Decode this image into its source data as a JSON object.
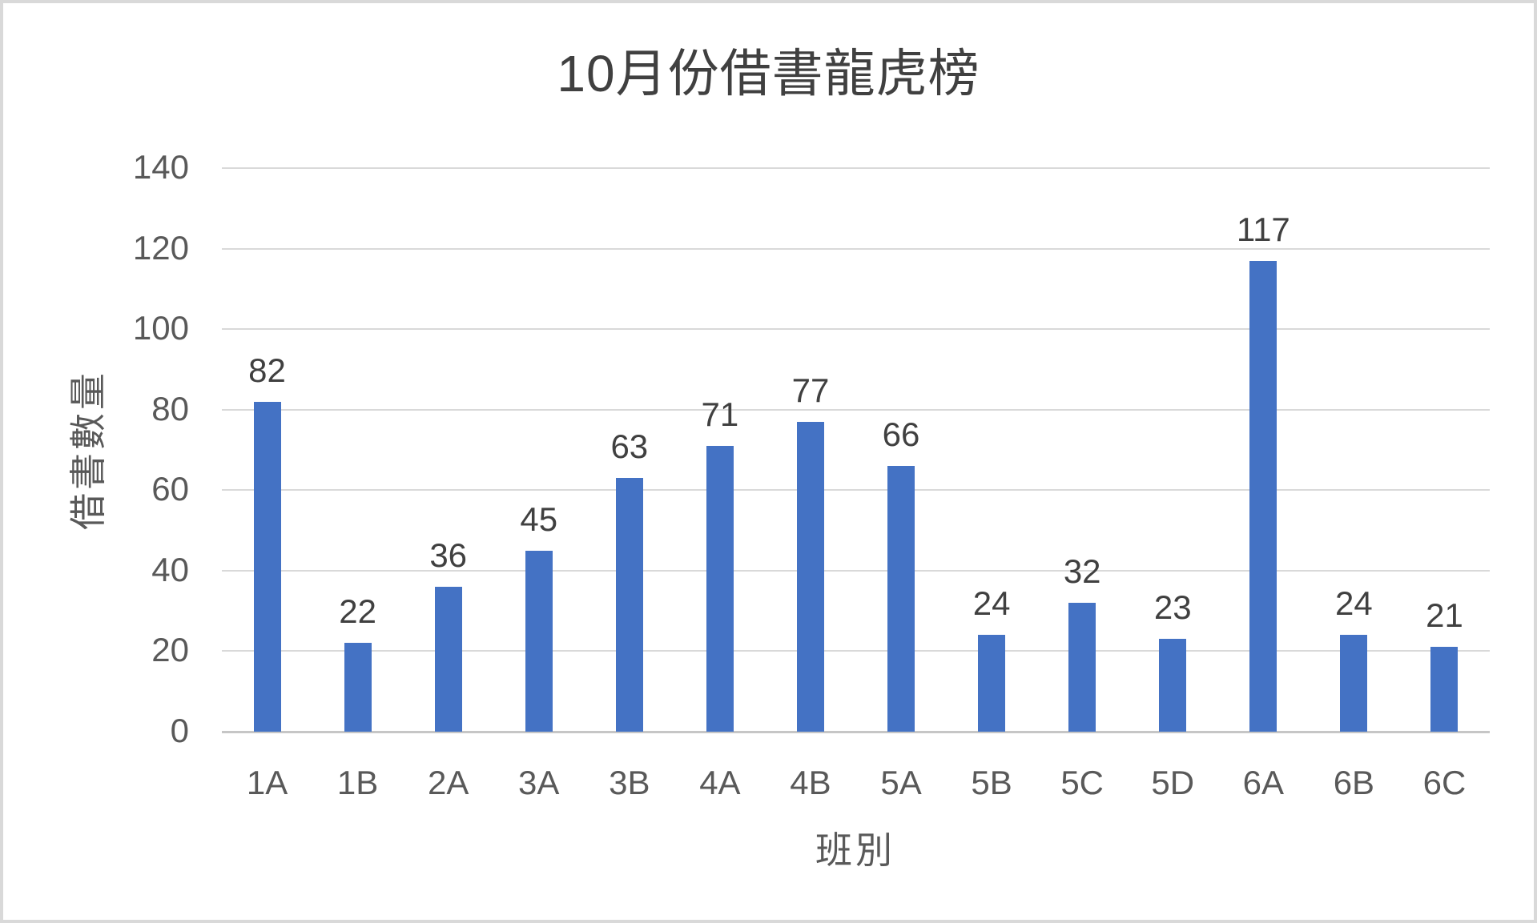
{
  "chart_data": {
    "type": "bar",
    "title": "10月份借書龍虎榜",
    "xlabel": "班別",
    "ylabel": "借書數量",
    "categories": [
      "1A",
      "1B",
      "2A",
      "3A",
      "3B",
      "4A",
      "4B",
      "5A",
      "5B",
      "5C",
      "5D",
      "6A",
      "6B",
      "6C"
    ],
    "values": [
      82,
      22,
      36,
      45,
      63,
      71,
      77,
      66,
      24,
      32,
      23,
      117,
      24,
      21
    ],
    "data_labels_shown": true,
    "ylim": [
      0,
      140
    ],
    "yticks": [
      0,
      20,
      40,
      60,
      80,
      100,
      120,
      140
    ],
    "grid": true,
    "legend": "none",
    "colors": {
      "bar": "#4472C4",
      "gridline": "#D9D9D9",
      "axis_line": "#C6C6C6",
      "title_text": "#404040",
      "data_label_text": "#404040",
      "tick_text": "#595959",
      "frame_border": "#D9D9D9",
      "background": "#FFFFFF"
    }
  }
}
